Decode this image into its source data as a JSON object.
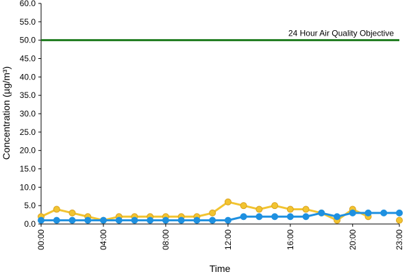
{
  "chart_data": {
    "type": "line",
    "xlabel": "Time",
    "ylabel": "Concentration (µg/m³)",
    "ylim": [
      0,
      60
    ],
    "yticks": [
      "0.0",
      "5.0",
      "10.0",
      "15.0",
      "20.0",
      "25.0",
      "30.0",
      "35.0",
      "40.0",
      "45.0",
      "50.0",
      "55.0",
      "60.0"
    ],
    "xlim": [
      0,
      23
    ],
    "xticks": [
      {
        "x": 0,
        "label": "00:00"
      },
      {
        "x": 4,
        "label": "04:00"
      },
      {
        "x": 8,
        "label": "08:00"
      },
      {
        "x": 12,
        "label": "12:00"
      },
      {
        "x": 16,
        "label": "16:00"
      },
      {
        "x": 20,
        "label": "20:00"
      },
      {
        "x": 23,
        "label": "23:00"
      }
    ],
    "grid": false,
    "objective": {
      "value": 50,
      "label": "24 Hour Air Quality Objective",
      "color": "#1e7b1e"
    },
    "series": [
      {
        "color": "#f2c431",
        "marker_fill": "#f2c431",
        "marker_stroke": "#d9a21f",
        "x": [
          0,
          1,
          2,
          3,
          4,
          5,
          6,
          7,
          8,
          9,
          10,
          11,
          12,
          13,
          14,
          15,
          16,
          17,
          18,
          19,
          20,
          21,
          22,
          23
        ],
        "values": [
          2,
          4,
          3,
          2,
          1,
          2,
          2,
          2,
          2,
          2,
          2,
          3,
          6,
          5,
          4,
          5,
          4,
          4,
          3,
          1,
          4,
          2,
          null,
          1
        ]
      },
      {
        "color": "#1e90e0",
        "marker_fill": "#1e90e0",
        "marker_stroke": "#1e90e0",
        "x": [
          0,
          1,
          2,
          3,
          4,
          5,
          6,
          7,
          8,
          9,
          10,
          11,
          12,
          13,
          14,
          15,
          16,
          17,
          18,
          19,
          20,
          21,
          22,
          23
        ],
        "values": [
          1,
          1,
          1,
          1,
          1,
          1,
          1,
          1,
          1,
          1,
          1,
          1,
          1,
          2,
          2,
          2,
          2,
          2,
          3,
          2,
          3,
          3,
          3,
          3
        ]
      }
    ]
  }
}
